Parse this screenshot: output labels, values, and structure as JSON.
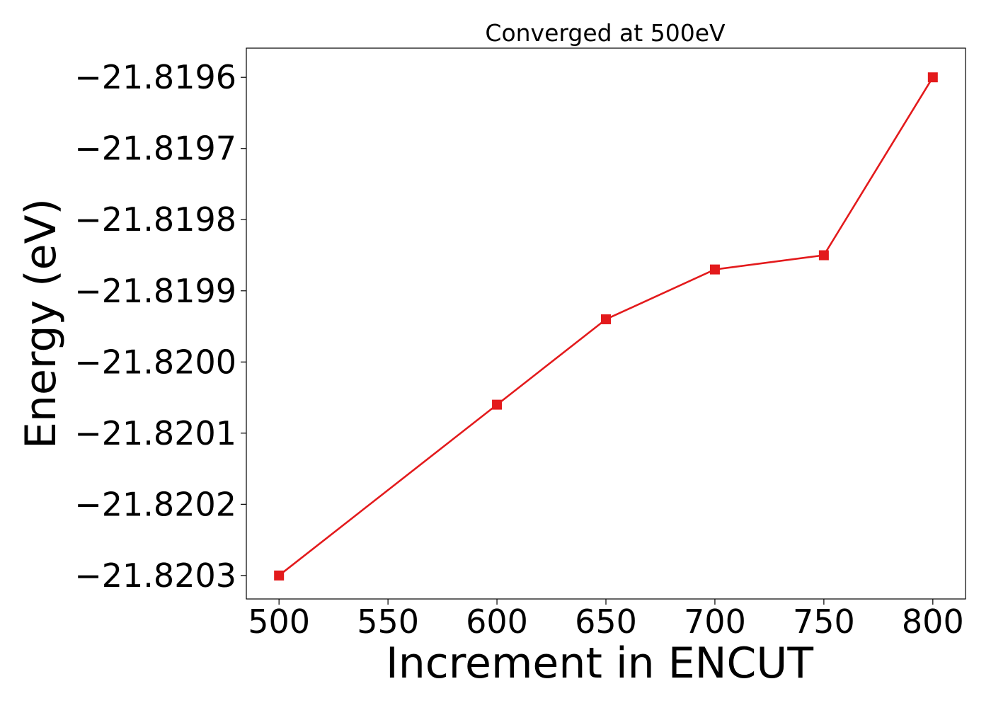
{
  "chart_data": {
    "type": "line",
    "title": "Converged at 500eV",
    "xlabel": "Increment in ENCUT",
    "ylabel": "Energy (eV)",
    "x": [
      500,
      600,
      650,
      700,
      750,
      800
    ],
    "series": [
      {
        "values": [
          -21.8203,
          -21.82006,
          -21.81994,
          -21.81987,
          -21.81985,
          -21.8196
        ],
        "color": "#e31a1c",
        "marker": "square"
      }
    ],
    "xticks": [
      500,
      550,
      600,
      650,
      700,
      750,
      800
    ],
    "xtick_labels": [
      "500",
      "550",
      "600",
      "650",
      "700",
      "750",
      "800"
    ],
    "yticks": [
      -21.8203,
      -21.8202,
      -21.8201,
      -21.82,
      -21.8199,
      -21.8198,
      -21.8197,
      -21.8196
    ],
    "ytick_labels": [
      "−21.8203",
      "−21.8202",
      "−21.8201",
      "−21.8200",
      "−21.8199",
      "−21.8198",
      "−21.8197",
      "−21.8196"
    ],
    "xlim": [
      485,
      815
    ],
    "ylim": [
      -21.820333,
      -21.819559
    ],
    "grid": false,
    "legend": "none"
  }
}
